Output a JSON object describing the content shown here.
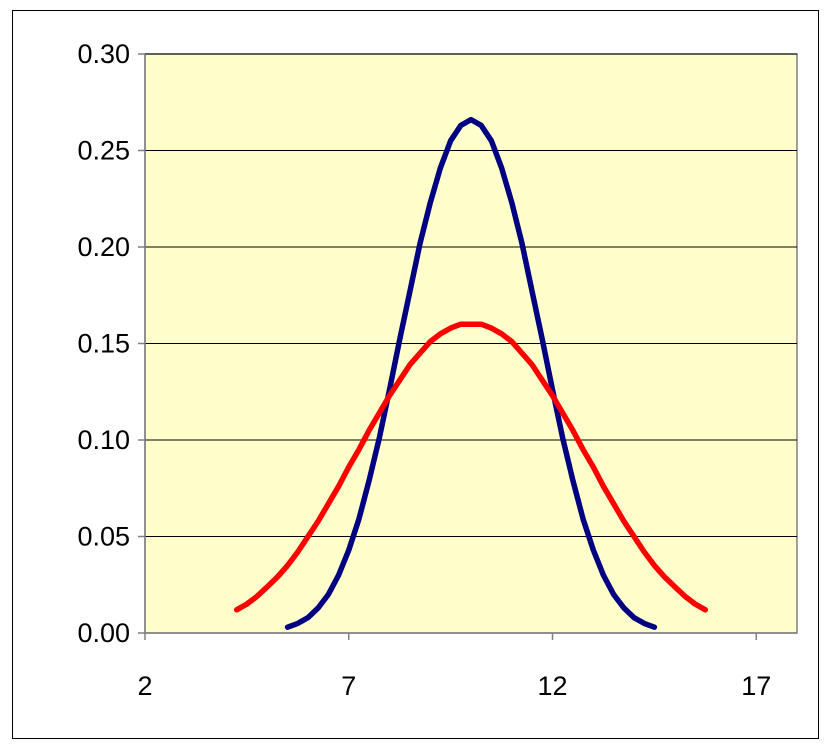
{
  "chart_data": {
    "type": "line",
    "title": "",
    "xlabel": "",
    "ylabel": "",
    "xlim": [
      2,
      18
    ],
    "ylim": [
      0,
      0.3
    ],
    "x_ticks": [
      2,
      7,
      12,
      17
    ],
    "x_tick_labels": [
      "2",
      "7",
      "12",
      "17"
    ],
    "y_ticks": [
      0,
      0.05,
      0.1,
      0.15,
      0.2,
      0.25,
      0.3
    ],
    "y_tick_labels": [
      "0.00",
      "0.05",
      "0.10",
      "0.15",
      "0.20",
      "0.25",
      "0.30"
    ],
    "grid": {
      "horizontal": true,
      "vertical": false
    },
    "legend": "none",
    "plot_background": "#FFFFCC",
    "series": [
      {
        "color": "#000080",
        "x": [
          5.5,
          5.75,
          6.0,
          6.25,
          6.5,
          6.75,
          7.0,
          7.25,
          7.5,
          7.75,
          8.0,
          8.25,
          8.5,
          8.75,
          9.0,
          9.25,
          9.5,
          9.75,
          10.0,
          10.25,
          10.5,
          10.75,
          11.0,
          11.25,
          11.5,
          11.75,
          12.0,
          12.25,
          12.5,
          12.75,
          13.0,
          13.25,
          13.5,
          13.75,
          14.0,
          14.25,
          14.5
        ],
        "y": [
          0.003,
          0.005,
          0.008,
          0.013,
          0.02,
          0.03,
          0.043,
          0.059,
          0.079,
          0.101,
          0.126,
          0.152,
          0.177,
          0.202,
          0.223,
          0.241,
          0.255,
          0.263,
          0.266,
          0.263,
          0.255,
          0.241,
          0.223,
          0.202,
          0.177,
          0.152,
          0.126,
          0.101,
          0.079,
          0.059,
          0.043,
          0.03,
          0.02,
          0.013,
          0.008,
          0.005,
          0.003
        ]
      },
      {
        "color": "#FF0000",
        "x": [
          4.25,
          4.5,
          4.75,
          5.0,
          5.25,
          5.5,
          5.75,
          6.0,
          6.25,
          6.5,
          6.75,
          7.0,
          7.25,
          7.5,
          7.75,
          8.0,
          8.25,
          8.5,
          8.75,
          9.0,
          9.25,
          9.5,
          9.75,
          10.0,
          10.25,
          10.5,
          10.75,
          11.0,
          11.25,
          11.5,
          11.75,
          12.0,
          12.25,
          12.5,
          12.75,
          13.0,
          13.25,
          13.5,
          13.75,
          14.0,
          14.25,
          14.5,
          14.75,
          15.0,
          15.25,
          15.5,
          15.75
        ],
        "y": [
          0.012,
          0.015,
          0.019,
          0.024,
          0.029,
          0.035,
          0.042,
          0.05,
          0.058,
          0.067,
          0.076,
          0.086,
          0.095,
          0.105,
          0.114,
          0.123,
          0.131,
          0.139,
          0.145,
          0.151,
          0.155,
          0.158,
          0.16,
          0.16,
          0.16,
          0.158,
          0.155,
          0.151,
          0.145,
          0.139,
          0.131,
          0.123,
          0.114,
          0.105,
          0.095,
          0.086,
          0.076,
          0.067,
          0.058,
          0.05,
          0.042,
          0.035,
          0.029,
          0.024,
          0.019,
          0.015,
          0.012
        ]
      }
    ]
  }
}
